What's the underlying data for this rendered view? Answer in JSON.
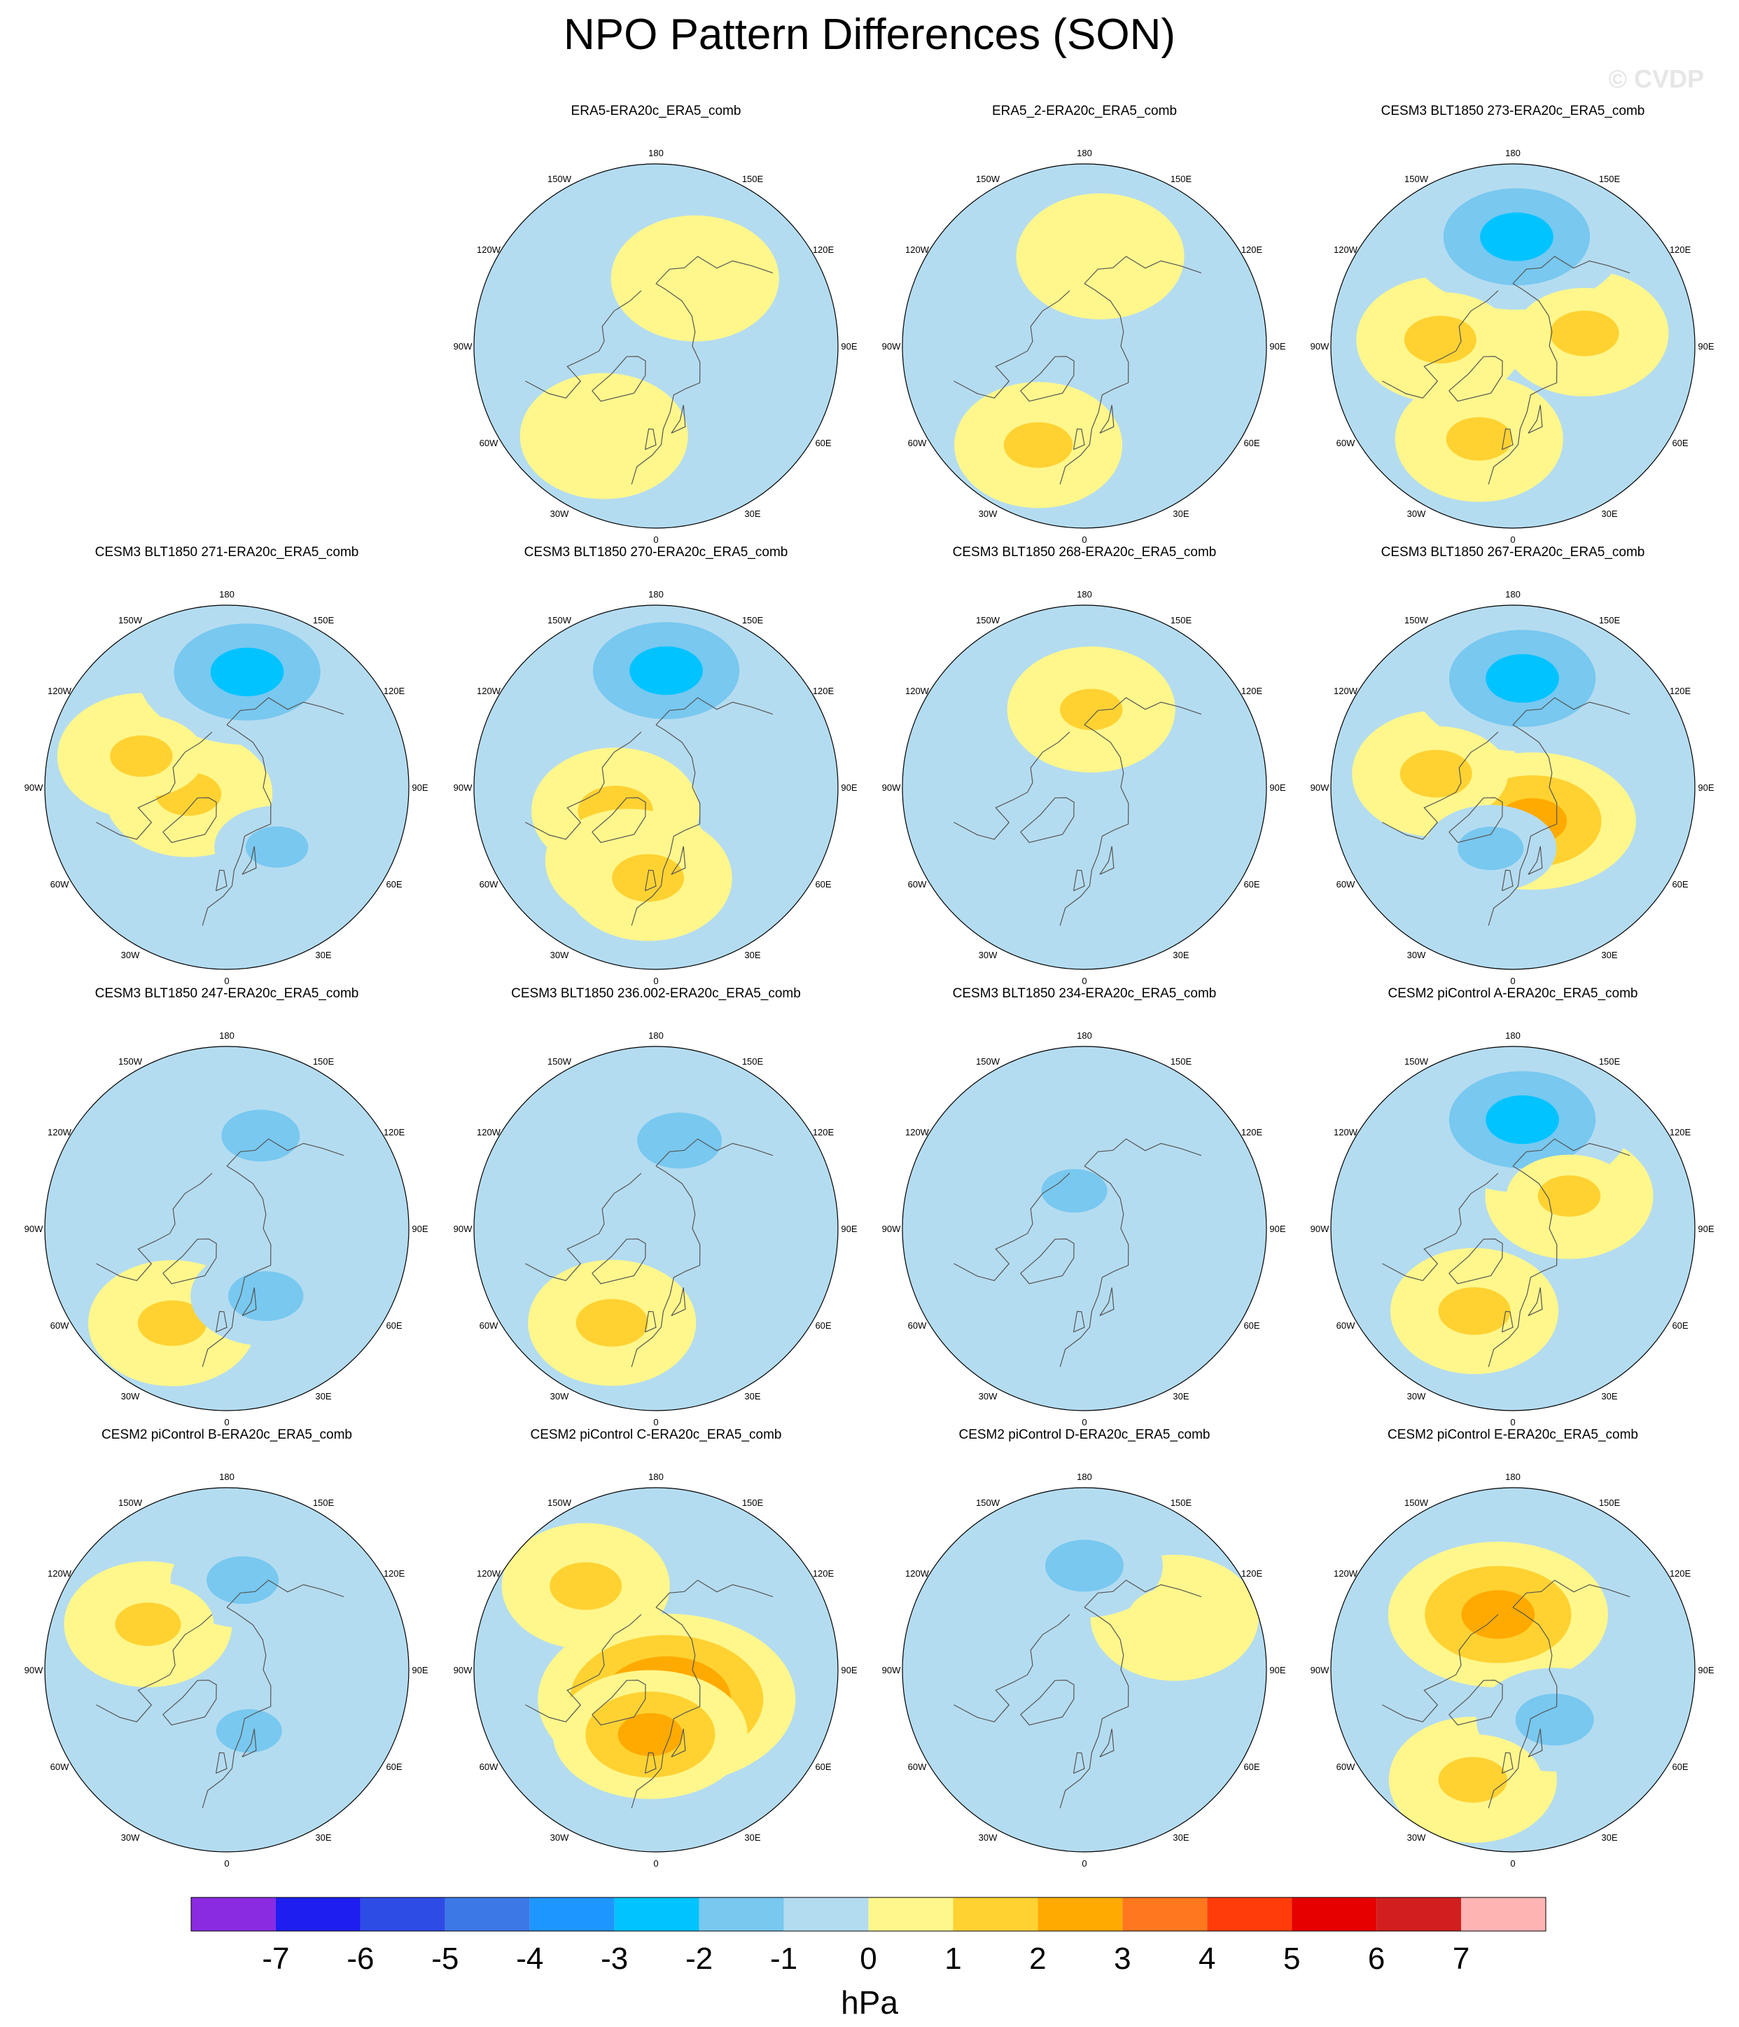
{
  "title": "NPO Pattern Differences (SON)",
  "watermark": "© CVDP",
  "colors": {
    "ocean_light_blue": "#b4dcf0",
    "light_yellow": "#fff78c",
    "coast": "#555555"
  },
  "longitude_labels": [
    "180",
    "150E",
    "120E",
    "90E",
    "60E",
    "30E",
    "0",
    "30W",
    "60W",
    "90W",
    "120W",
    "150W"
  ],
  "chart_data": {
    "type": "heatmap",
    "projection": "north polar stereographic",
    "colorbar": {
      "units": "hPa",
      "tick_labels": [
        "-7",
        "-6",
        "-5",
        "-4",
        "-3",
        "-2",
        "-1",
        "0",
        "1",
        "2",
        "3",
        "4",
        "5",
        "6",
        "7"
      ],
      "colors": [
        "#8a2be2",
        "#1e1ef0",
        "#2d4ce6",
        "#3c78e6",
        "#1e96ff",
        "#00c3ff",
        "#78c8f0",
        "#b4dcf0",
        "#fff78c",
        "#ffd232",
        "#ffaa00",
        "#ff781e",
        "#ff3c0a",
        "#e60000",
        "#d21e1e",
        "#ffb4b4"
      ]
    },
    "panels": [
      {
        "title": "ERA5-ERA20c_ERA5_comb",
        "row": 0,
        "col": 1,
        "anomalies": [
          {
            "lon": 150,
            "lat": 60,
            "value": 0.6
          },
          {
            "lon": -30,
            "lat": 50,
            "value": 0.7
          }
        ]
      },
      {
        "title": "ERA5_2-ERA20c_ERA5_comb",
        "row": 0,
        "col": 2,
        "anomalies": [
          {
            "lon": -25,
            "lat": 48,
            "value": 1.3
          },
          {
            "lon": 170,
            "lat": 55,
            "value": 0.6
          }
        ]
      },
      {
        "title": "CESM3 BLT1850 273-ERA20c_ERA5_comb",
        "row": 0,
        "col": 3,
        "anomalies": [
          {
            "lon": 178,
            "lat": 48,
            "value": -2.6
          },
          {
            "lon": -95,
            "lat": 62,
            "value": 1.4
          },
          {
            "lon": 100,
            "lat": 62,
            "value": 1.3
          },
          {
            "lon": -20,
            "lat": 52,
            "value": 1.2
          }
        ]
      },
      {
        "title": "CESM3 BLT1850 271-ERA20c_ERA5_comb",
        "row": 1,
        "col": 0,
        "anomalies": [
          {
            "lon": 170,
            "lat": 45,
            "value": -2.6
          },
          {
            "lon": -80,
            "lat": 75,
            "value": 1.2
          },
          {
            "lon": -110,
            "lat": 55,
            "value": 1.1
          },
          {
            "lon": 40,
            "lat": 60,
            "value": -1.1
          }
        ]
      },
      {
        "title": "CESM3 BLT1850 270-ERA20c_ERA5_comb",
        "row": 1,
        "col": 1,
        "anomalies": [
          {
            "lon": 175,
            "lat": 45,
            "value": -2.6
          },
          {
            "lon": -60,
            "lat": 72,
            "value": 1.5
          },
          {
            "lon": -20,
            "lat": 60,
            "value": 1.6
          },
          {
            "lon": -5,
            "lat": 55,
            "value": 1.4
          }
        ]
      },
      {
        "title": "CESM3 BLT1850 268-ERA20c_ERA5_comb",
        "row": 1,
        "col": 2,
        "anomalies": [
          {
            "lon": 175,
            "lat": 60,
            "value": 1.1
          }
        ]
      },
      {
        "title": "CESM3 BLT1850 267-ERA20c_ERA5_comb",
        "row": 1,
        "col": 3,
        "anomalies": [
          {
            "lon": 175,
            "lat": 48,
            "value": -2.6
          },
          {
            "lon": 30,
            "lat": 75,
            "value": 2.4
          },
          {
            "lon": -100,
            "lat": 60,
            "value": 1.4
          },
          {
            "lon": -20,
            "lat": 65,
            "value": -1.2
          }
        ]
      },
      {
        "title": "CESM3 BLT1850 247-ERA20c_ERA5_comb",
        "row": 2,
        "col": 0,
        "anomalies": [
          {
            "lon": 160,
            "lat": 52,
            "value": -1.6
          },
          {
            "lon": -30,
            "lat": 48,
            "value": 1.3
          },
          {
            "lon": 30,
            "lat": 60,
            "value": -1.5
          }
        ]
      },
      {
        "title": "CESM3 BLT1850 236.002-ERA20c_ERA5_comb",
        "row": 2,
        "col": 1,
        "anomalies": [
          {
            "lon": 165,
            "lat": 55,
            "value": -1.8
          },
          {
            "lon": -25,
            "lat": 50,
            "value": 1.4
          }
        ]
      },
      {
        "title": "CESM3 BLT1850 234-ERA20c_ERA5_comb",
        "row": 2,
        "col": 2,
        "anomalies": [
          {
            "lon": -165,
            "lat": 75,
            "value": -1.2
          }
        ]
      },
      {
        "title": "CESM2 piControl A-ERA20c_ERA5_comb",
        "row": 2,
        "col": 3,
        "anomalies": [
          {
            "lon": 175,
            "lat": 48,
            "value": -2.6
          },
          {
            "lon": -25,
            "lat": 55,
            "value": 1.4
          },
          {
            "lon": 120,
            "lat": 65,
            "value": 1.1
          }
        ]
      },
      {
        "title": "CESM2 piControl B-ERA20c_ERA5_comb",
        "row": 3,
        "col": 0,
        "anomalies": [
          {
            "lon": 170,
            "lat": 55,
            "value": -1.4
          },
          {
            "lon": -120,
            "lat": 55,
            "value": 1.2
          },
          {
            "lon": 20,
            "lat": 65,
            "value": -1.2
          }
        ]
      },
      {
        "title": "CESM2 piControl C-ERA20c_ERA5_comb",
        "row": 3,
        "col": 1,
        "anomalies": [
          {
            "lon": -140,
            "lat": 48,
            "value": 1.4
          },
          {
            "lon": 20,
            "lat": 78,
            "value": 3.2
          },
          {
            "lon": -5,
            "lat": 65,
            "value": 2.2
          }
        ]
      },
      {
        "title": "CESM2 piControl D-ERA20c_ERA5_comb",
        "row": 3,
        "col": 2,
        "anomalies": [
          {
            "lon": 180,
            "lat": 50,
            "value": -1.6
          },
          {
            "lon": 120,
            "lat": 50,
            "value": 0.6
          }
        ]
      },
      {
        "title": "CESM2 piControl E-ERA20c_ERA5_comb",
        "row": 3,
        "col": 3,
        "anomalies": [
          {
            "lon": -165,
            "lat": 68,
            "value": 2.6
          },
          {
            "lon": 40,
            "lat": 65,
            "value": -1.6
          },
          {
            "lon": -20,
            "lat": 45,
            "value": 1.3
          }
        ]
      }
    ]
  }
}
